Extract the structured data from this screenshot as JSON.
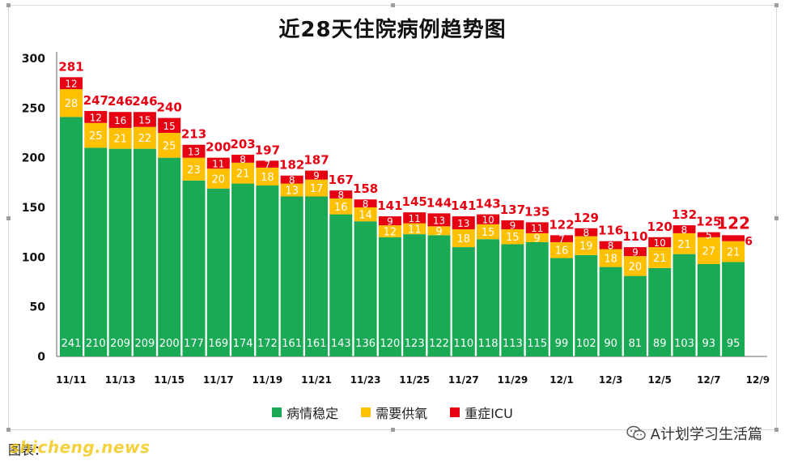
{
  "chart_data": {
    "type": "bar",
    "stacked": true,
    "title": "近28天住院病例趋势图",
    "ylim": [
      0,
      300
    ],
    "yticks": [
      0,
      50,
      100,
      150,
      200,
      250,
      300
    ],
    "x_tick_labels": [
      "11/11",
      "11/13",
      "11/15",
      "11/17",
      "11/19",
      "11/21",
      "11/23",
      "11/25",
      "11/27",
      "11/29",
      "12/1",
      "12/3",
      "12/5",
      "12/7",
      "12/9"
    ],
    "categories": [
      "11/11",
      "11/12",
      "11/13",
      "11/14",
      "11/15",
      "11/16",
      "11/17",
      "11/18",
      "11/19",
      "11/20",
      "11/21",
      "11/22",
      "11/23",
      "11/24",
      "11/25",
      "11/26",
      "11/27",
      "11/28",
      "11/29",
      "11/30",
      "12/1",
      "12/2",
      "12/3",
      "12/4",
      "12/5",
      "12/6",
      "12/7",
      "12/8"
    ],
    "series": [
      {
        "name": "病情稳定",
        "color": "#1aaa55",
        "values": [
          241,
          210,
          209,
          209,
          200,
          177,
          169,
          174,
          172,
          161,
          161,
          143,
          136,
          120,
          123,
          122,
          110,
          118,
          113,
          115,
          99,
          102,
          90,
          81,
          89,
          103,
          93,
          95
        ]
      },
      {
        "name": "需要供氧",
        "color": "#ffc000",
        "values": [
          28,
          25,
          21,
          22,
          25,
          23,
          20,
          21,
          18,
          13,
          17,
          16,
          14,
          12,
          11,
          9,
          18,
          15,
          15,
          9,
          16,
          19,
          18,
          20,
          21,
          21,
          27,
          21
        ]
      },
      {
        "name": "重症ICU",
        "color": "#e60012",
        "values": [
          12,
          12,
          16,
          15,
          15,
          13,
          11,
          8,
          7,
          8,
          9,
          8,
          8,
          9,
          11,
          13,
          13,
          10,
          9,
          11,
          7,
          8,
          8,
          9,
          10,
          8,
          5,
          6
        ]
      }
    ],
    "totals": [
      281,
      247,
      246,
      246,
      240,
      213,
      200,
      203,
      197,
      182,
      187,
      167,
      158,
      141,
      145,
      144,
      141,
      143,
      137,
      135,
      122,
      129,
      116,
      110,
      120,
      132,
      125,
      122
    ],
    "legend_position": "bottom",
    "grid": false
  },
  "footer": {
    "source_text": "图表：",
    "credit_text": "A计划学习生活篇",
    "site_watermark": "shicheng.news"
  }
}
